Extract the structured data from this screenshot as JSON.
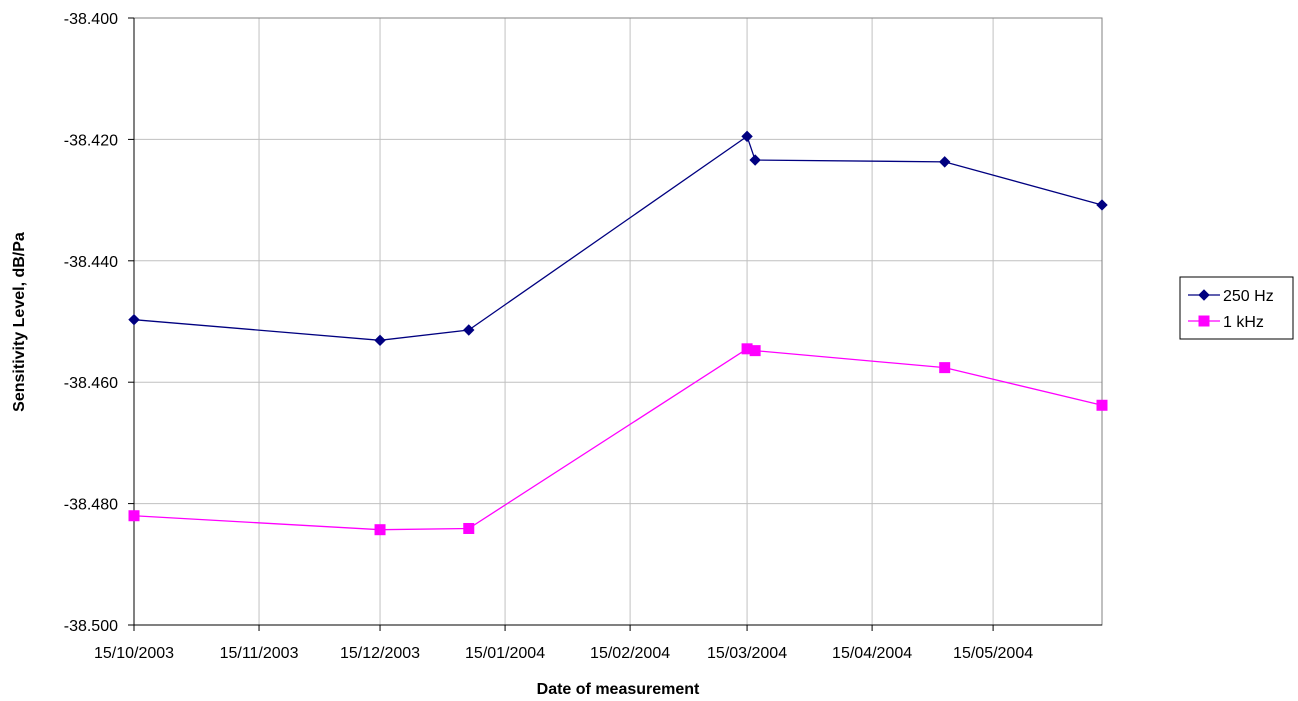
{
  "chart_data": {
    "type": "line",
    "title": "",
    "xlabel": "Date of measurement",
    "ylabel": "Sensitivity Level, dB/Pa",
    "x_ticks": [
      "15/10/2003",
      "15/11/2003",
      "15/12/2003",
      "15/01/2004",
      "15/02/2004",
      "15/03/2004",
      "15/04/2004",
      "15/05/2004"
    ],
    "xlim": [
      "2003-10-15",
      "2004-06-11"
    ],
    "y_ticks": [
      "-38.400",
      "-38.420",
      "-38.440",
      "-38.460",
      "-38.480",
      "-38.500"
    ],
    "ylim": [
      -38.5,
      -38.4
    ],
    "grid": true,
    "legend_position": "right",
    "series": [
      {
        "name": "250 Hz",
        "color": "#000080",
        "marker": "diamond",
        "points": [
          {
            "x": "2003-10-15",
            "y": -38.4497
          },
          {
            "x": "2003-12-15",
            "y": -38.4531
          },
          {
            "x": "2004-01-06",
            "y": -38.4514
          },
          {
            "x": "2004-03-15",
            "y": -38.4195
          },
          {
            "x": "2004-03-17",
            "y": -38.4234
          },
          {
            "x": "2004-05-03",
            "y": -38.4237
          },
          {
            "x": "2004-06-11",
            "y": -38.4308
          }
        ]
      },
      {
        "name": "1 kHz",
        "color": "#ff00ff",
        "marker": "square",
        "points": [
          {
            "x": "2003-10-15",
            "y": -38.482
          },
          {
            "x": "2003-12-15",
            "y": -38.4843
          },
          {
            "x": "2004-01-06",
            "y": -38.4841
          },
          {
            "x": "2004-03-15",
            "y": -38.4545
          },
          {
            "x": "2004-03-17",
            "y": -38.4548
          },
          {
            "x": "2004-05-03",
            "y": -38.4576
          },
          {
            "x": "2004-06-11",
            "y": -38.4638
          }
        ]
      }
    ]
  }
}
